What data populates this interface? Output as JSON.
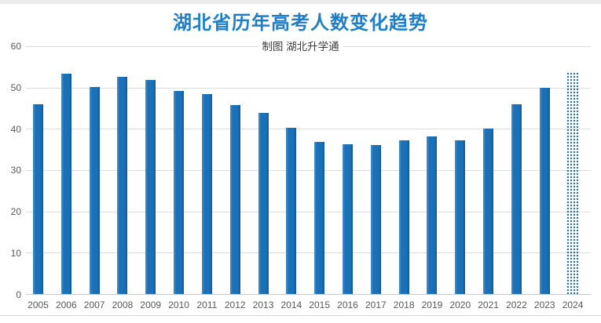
{
  "page": {
    "title": "湖北省历年高考人数变化趋势",
    "subtitle": "制图 湖北升学通"
  },
  "chart_data": {
    "type": "bar",
    "title": "湖北省历年高考人数变化趋势",
    "subtitle": "制图 湖北升学通",
    "categories": [
      "2005",
      "2006",
      "2007",
      "2008",
      "2009",
      "2010",
      "2011",
      "2012",
      "2013",
      "2014",
      "2015",
      "2016",
      "2017",
      "2018",
      "2019",
      "2020",
      "2021",
      "2022",
      "2023",
      "2024"
    ],
    "values": [
      46.0,
      53.5,
      50.3,
      52.6,
      52.0,
      49.2,
      48.6,
      45.9,
      43.9,
      40.3,
      36.9,
      36.3,
      36.2,
      37.4,
      38.3,
      37.4,
      40.1,
      46.1,
      50.0,
      54.0
    ],
    "projected_categories": [
      "2024"
    ],
    "xlabel": "",
    "ylabel": "",
    "ylim": [
      0,
      60
    ],
    "yticks": [
      0,
      10,
      20,
      30,
      40,
      50,
      60
    ],
    "grid": "horizontal",
    "legend_position": "none",
    "colors": {
      "bar": "#1b71b8",
      "bar_highlight": "#4a8ec9",
      "bar_shadow": "#115a94",
      "projected_dots": "#2a6d94",
      "title": "#1e7fc6",
      "subtitle": "#3d3d3d",
      "axis_labels": "#595959",
      "gridline": "#dcdcdc",
      "axis_line": "#c9c9c9"
    }
  }
}
